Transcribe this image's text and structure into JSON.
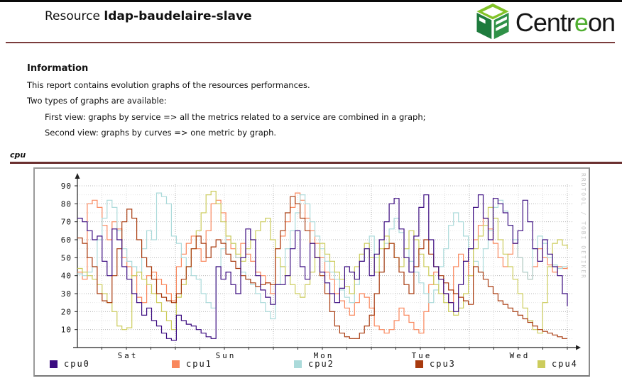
{
  "header": {
    "title_prefix": "Resource ",
    "resource_name": "ldap-baudelaire-slave"
  },
  "logo": {
    "part1": "Centr",
    "part2": "e",
    "part3": "on",
    "green": "#4fae2f",
    "cube_top": "#82c328",
    "cube_left": "#1e7b3d",
    "cube_right": "#2f9147"
  },
  "information": {
    "heading": "Information",
    "lines": [
      "This report contains evolution graphs of the resources performances.",
      "Two types of graphs are available:"
    ],
    "sub_lines": [
      "First view: graphs by service => all the metrics related to a service are combined in a graph;",
      "Second view: graphs by curves => one metric by graph."
    ]
  },
  "section_label": "cpu",
  "watermark": "RRDTOOL / TOBI OETIKER",
  "colors": {
    "rule_maroon": "#6b2f2f",
    "panel_border": "#9a9a9a",
    "grid_major": "#b8b8b8",
    "grid_minor": "#e6e6e6",
    "axis": "#222222"
  },
  "chart_data": {
    "type": "line",
    "title": "cpu",
    "xlabel": "",
    "ylabel": "",
    "ylim": [
      0,
      93
    ],
    "y_ticks": [
      10,
      20,
      30,
      40,
      50,
      60,
      70,
      80,
      90
    ],
    "grid": true,
    "legend_position": "bottom",
    "x_axis": {
      "labels": [
        "Sat",
        "Sun",
        "Mon",
        "Tue",
        "Wed"
      ],
      "span_days": 5,
      "minor_grid_hours": 6
    },
    "draw_order": [
      1,
      2,
      4,
      3,
      0
    ],
    "series": [
      {
        "name": "cpu0",
        "color": "#3b0b80",
        "values": [
          72,
          70,
          65,
          60,
          62,
          48,
          40,
          66,
          60,
          45,
          38,
          30,
          25,
          18,
          22,
          15,
          12,
          8,
          5,
          4,
          18,
          15,
          13,
          12,
          10,
          8,
          6,
          5,
          45,
          38,
          42,
          35,
          30,
          50,
          66,
          60,
          40,
          32,
          28,
          24,
          35,
          35,
          40,
          55,
          65,
          45,
          38,
          58,
          50,
          42,
          36,
          30,
          25,
          33,
          45,
          42,
          38,
          48,
          55,
          40,
          52,
          60,
          70,
          80,
          83,
          66,
          50,
          42,
          62,
          78,
          85,
          60,
          45,
          38,
          30,
          25,
          20,
          35,
          48,
          55,
          78,
          85,
          72,
          60,
          83,
          80,
          75,
          68,
          58,
          65,
          82,
          70,
          55,
          48,
          60,
          52,
          45,
          40,
          30,
          23
        ]
      },
      {
        "name": "cpu1",
        "color": "#f9875c",
        "values": [
          42,
          38,
          80,
          82,
          78,
          68,
          60,
          70,
          66,
          50,
          45,
          40,
          28,
          25,
          40,
          42,
          38,
          35,
          30,
          26,
          45,
          52,
          58,
          62,
          55,
          48,
          65,
          80,
          82,
          75,
          60,
          55,
          50,
          58,
          52,
          48,
          42,
          40,
          36,
          30,
          55,
          62,
          70,
          78,
          86,
          82,
          72,
          65,
          58,
          50,
          42,
          38,
          30,
          26,
          22,
          18,
          25,
          30,
          28,
          22,
          12,
          10,
          8,
          10,
          15,
          22,
          18,
          14,
          10,
          8,
          20,
          35,
          42,
          38,
          30,
          25,
          45,
          52,
          48,
          40,
          60,
          68,
          72,
          66,
          58,
          50,
          45,
          52,
          58,
          50,
          42,
          38,
          45,
          55,
          50,
          46,
          42,
          45,
          44,
          45
        ]
      },
      {
        "name": "cpu2",
        "color": "#abdada",
        "values": [
          41,
          40,
          42,
          45,
          60,
          72,
          82,
          78,
          65,
          55,
          48,
          45,
          42,
          55,
          65,
          60,
          86,
          84,
          80,
          62,
          58,
          50,
          45,
          40,
          38,
          30,
          25,
          22,
          45,
          55,
          62,
          58,
          50,
          42,
          38,
          35,
          30,
          25,
          20,
          16,
          35,
          45,
          55,
          65,
          75,
          85,
          80,
          70,
          62,
          55,
          48,
          42,
          38,
          32,
          28,
          25,
          35,
          48,
          55,
          62,
          50,
          42,
          58,
          66,
          72,
          64,
          55,
          48,
          42,
          36,
          30,
          25,
          32,
          45,
          55,
          68,
          75,
          70,
          62,
          55,
          48,
          42,
          55,
          65,
          78,
          82,
          76,
          68,
          60,
          50,
          42,
          38,
          55,
          62,
          58,
          50,
          46,
          44,
          45,
          45
        ]
      },
      {
        "name": "cpu3",
        "color": "#a83a0e",
        "values": [
          61,
          58,
          50,
          45,
          30,
          26,
          25,
          40,
          55,
          70,
          77,
          72,
          60,
          50,
          45,
          38,
          30,
          28,
          26,
          25,
          30,
          38,
          45,
          55,
          62,
          58,
          50,
          56,
          60,
          58,
          52,
          48,
          44,
          40,
          38,
          36,
          34,
          35,
          36,
          35,
          55,
          65,
          75,
          84,
          80,
          72,
          65,
          58,
          50,
          40,
          30,
          20,
          12,
          8,
          6,
          5,
          5,
          8,
          12,
          18,
          30,
          42,
          55,
          58,
          50,
          42,
          35,
          30,
          45,
          55,
          60,
          52,
          45,
          40,
          36,
          32,
          30,
          28,
          26,
          24,
          45,
          42,
          38,
          34,
          30,
          26,
          24,
          22,
          20,
          18,
          16,
          14,
          12,
          10,
          9,
          8,
          7,
          6,
          5,
          5
        ]
      },
      {
        "name": "cpu4",
        "color": "#ccცc5c",
        "values": [
          44,
          42,
          40,
          38,
          35,
          30,
          25,
          20,
          12,
          10,
          11,
          40,
          42,
          38,
          35,
          30,
          25,
          20,
          15,
          10,
          28,
          35,
          45,
          55,
          65,
          75,
          85,
          87,
          80,
          70,
          62,
          58,
          52,
          48,
          55,
          60,
          65,
          70,
          72,
          60,
          50,
          45,
          40,
          35,
          30,
          28,
          35,
          42,
          50,
          58,
          52,
          48,
          42,
          38,
          34,
          30,
          45,
          52,
          58,
          50,
          42,
          55,
          62,
          58,
          50,
          45,
          55,
          65,
          60,
          52,
          45,
          40,
          35,
          30,
          25,
          20,
          18,
          22,
          30,
          40,
          55,
          62,
          68,
          78,
          72,
          60,
          52,
          45,
          38,
          30,
          22,
          15,
          10,
          8,
          25,
          45,
          58,
          60,
          57,
          55
        ]
      }
    ]
  }
}
